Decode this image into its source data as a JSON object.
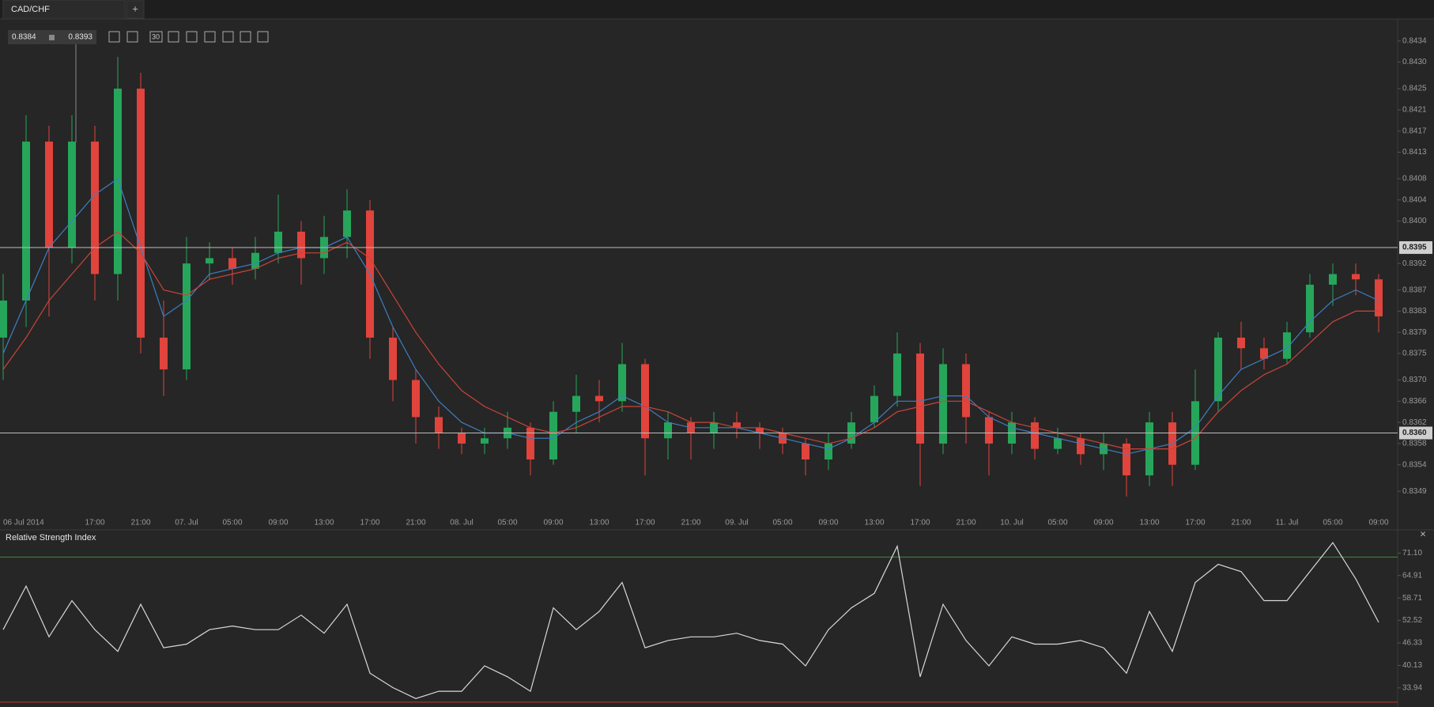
{
  "tab": {
    "title": "CAD/CHF",
    "add": "+"
  },
  "toolbar": {
    "bid": "0.8384",
    "ask": "0.8393",
    "period": "30"
  },
  "rsi_panel": {
    "close": "×"
  },
  "chart_data": [
    {
      "type": "candlestick",
      "categories": [
        "06 Jul 2014",
        null,
        null,
        null,
        "17:00",
        null,
        "21:00",
        null,
        "07. Jul",
        null,
        "05:00",
        null,
        "09:00",
        null,
        "13:00",
        null,
        "17:00",
        null,
        "21:00",
        null,
        "08. Jul",
        null,
        "05:00",
        null,
        "09:00",
        null,
        "13:00",
        null,
        "17:00",
        null,
        "21:00",
        null,
        "09. Jul",
        null,
        "05:00",
        null,
        "09:00",
        null,
        "13:00",
        null,
        "17:00",
        null,
        "21:00",
        null,
        "10. Jul",
        null,
        "05:00",
        null,
        "09:00",
        null,
        "13:00",
        null,
        "17:00",
        null,
        "21:00",
        null,
        "11. Jul",
        null,
        "05:00",
        null,
        "09:00"
      ],
      "open": [
        0.8378,
        0.8385,
        0.8415,
        0.8395,
        0.8415,
        0.839,
        0.8425,
        0.8378,
        0.8372,
        0.8392,
        0.8393,
        0.8391,
        0.8394,
        0.8398,
        0.8393,
        0.8397,
        0.8402,
        0.8378,
        0.837,
        0.8363,
        0.836,
        0.8358,
        0.8359,
        0.8361,
        0.8355,
        0.8364,
        0.8367,
        0.8366,
        0.8373,
        0.8359,
        0.8362,
        0.836,
        0.8362,
        0.8361,
        0.836,
        0.8358,
        0.8355,
        0.8358,
        0.8362,
        0.8367,
        0.8375,
        0.8358,
        0.8373,
        0.8363,
        0.8358,
        0.8362,
        0.8357,
        0.8359,
        0.8356,
        0.8358,
        0.8352,
        0.8362,
        0.8354,
        0.8366,
        0.8378,
        0.8376,
        0.8374,
        0.8379,
        0.8388,
        0.839,
        0.8389
      ],
      "high": [
        0.839,
        0.842,
        0.8418,
        0.842,
        0.8418,
        0.8431,
        0.8428,
        0.8385,
        0.8397,
        0.8396,
        0.8395,
        0.8397,
        0.8405,
        0.84,
        0.8401,
        0.8406,
        0.8404,
        0.838,
        0.8372,
        0.8365,
        0.8361,
        0.8361,
        0.8364,
        0.8362,
        0.8366,
        0.8371,
        0.837,
        0.8377,
        0.8374,
        0.8364,
        0.8363,
        0.8364,
        0.8364,
        0.8362,
        0.8361,
        0.8359,
        0.836,
        0.8364,
        0.8369,
        0.8379,
        0.8377,
        0.8376,
        0.8375,
        0.8364,
        0.8364,
        0.8363,
        0.8361,
        0.836,
        0.836,
        0.8359,
        0.8364,
        0.8364,
        0.8372,
        0.8379,
        0.8381,
        0.8378,
        0.8381,
        0.839,
        0.8392,
        0.8392,
        0.839
      ],
      "low": [
        0.837,
        0.838,
        0.8382,
        0.8392,
        0.8385,
        0.8385,
        0.8375,
        0.8367,
        0.837,
        0.8389,
        0.8388,
        0.8389,
        0.8392,
        0.8388,
        0.839,
        0.8393,
        0.8374,
        0.8366,
        0.8358,
        0.8357,
        0.8356,
        0.8356,
        0.8357,
        0.8352,
        0.8354,
        0.836,
        0.8362,
        0.8364,
        0.8352,
        0.8355,
        0.8355,
        0.8357,
        0.8359,
        0.8357,
        0.8356,
        0.8352,
        0.8353,
        0.8357,
        0.8361,
        0.8365,
        0.835,
        0.8356,
        0.8358,
        0.8352,
        0.8356,
        0.8355,
        0.8356,
        0.8354,
        0.8353,
        0.8348,
        0.835,
        0.835,
        0.8353,
        0.8364,
        0.8372,
        0.8372,
        0.8373,
        0.8378,
        0.8384,
        0.8386,
        0.8379
      ],
      "close": [
        0.8385,
        0.8415,
        0.8395,
        0.8415,
        0.839,
        0.8425,
        0.8378,
        0.8372,
        0.8392,
        0.8393,
        0.8391,
        0.8394,
        0.8398,
        0.8393,
        0.8397,
        0.8402,
        0.8378,
        0.837,
        0.8363,
        0.836,
        0.8358,
        0.8359,
        0.8361,
        0.8355,
        0.8364,
        0.8367,
        0.8366,
        0.8373,
        0.8359,
        0.8362,
        0.836,
        0.8362,
        0.8361,
        0.836,
        0.8358,
        0.8355,
        0.8358,
        0.8362,
        0.8367,
        0.8375,
        0.8358,
        0.8373,
        0.8363,
        0.8358,
        0.8362,
        0.8357,
        0.8359,
        0.8356,
        0.8358,
        0.8352,
        0.8362,
        0.8354,
        0.8366,
        0.8378,
        0.8376,
        0.8374,
        0.8379,
        0.8388,
        0.839,
        0.8389,
        0.8382
      ],
      "up_color": "#26a65b",
      "down_color": "#e0443c",
      "series": [
        {
          "color": "#3d7fc1",
          "values": [
            0.8375,
            0.8385,
            0.8395,
            0.84,
            0.8405,
            0.8408,
            0.8395,
            0.8382,
            0.8385,
            0.839,
            0.8391,
            0.8392,
            0.8394,
            0.8395,
            0.8395,
            0.8397,
            0.839,
            0.838,
            0.8372,
            0.8366,
            0.8362,
            0.836,
            0.836,
            0.8359,
            0.8359,
            0.8362,
            0.8364,
            0.8367,
            0.8365,
            0.8362,
            0.8361,
            0.8361,
            0.8361,
            0.836,
            0.8359,
            0.8358,
            0.8357,
            0.8359,
            0.8362,
            0.8366,
            0.8366,
            0.8367,
            0.8367,
            0.8363,
            0.8361,
            0.836,
            0.8359,
            0.8358,
            0.8357,
            0.8356,
            0.8357,
            0.8358,
            0.8361,
            0.8367,
            0.8372,
            0.8374,
            0.8376,
            0.8381,
            0.8385,
            0.8387,
            0.8385
          ]
        },
        {
          "color": "#c9443a",
          "values": [
            0.8372,
            0.8378,
            0.8385,
            0.839,
            0.8395,
            0.8398,
            0.8394,
            0.8387,
            0.8386,
            0.8389,
            0.839,
            0.8391,
            0.8393,
            0.8394,
            0.8394,
            0.8396,
            0.8393,
            0.8386,
            0.8379,
            0.8373,
            0.8368,
            0.8365,
            0.8363,
            0.8361,
            0.836,
            0.8361,
            0.8363,
            0.8365,
            0.8365,
            0.8364,
            0.8362,
            0.8362,
            0.8361,
            0.8361,
            0.836,
            0.8359,
            0.8358,
            0.8359,
            0.8361,
            0.8364,
            0.8365,
            0.8366,
            0.8366,
            0.8364,
            0.8362,
            0.8361,
            0.836,
            0.8359,
            0.8358,
            0.8357,
            0.8357,
            0.8357,
            0.8359,
            0.8364,
            0.8368,
            0.8371,
            0.8373,
            0.8377,
            0.8381,
            0.8383,
            0.8383
          ]
        }
      ],
      "ylim": [
        0.8345,
        0.8438
      ],
      "yticks": [
        0.8434,
        {
          "value": 0.843,
          "label": "0.8430"
        },
        0.8425,
        0.8421,
        0.8417,
        0.8413,
        0.8408,
        0.8404,
        {
          "value": 0.84,
          "label": "0.8400"
        },
        0.8392,
        0.8387,
        0.8383,
        0.8379,
        0.8375,
        {
          "value": 0.837,
          "label": "0.8370"
        },
        0.8366,
        0.8362,
        0.8358,
        0.8354,
        0.8349
      ],
      "hlines": [
        0.8395,
        {
          "value": 0.836,
          "label": "0.8360"
        }
      ],
      "hline_color": "#bdbdbd"
    },
    {
      "type": "line",
      "title": "Relative Strength Index",
      "color": "#d9d9d9",
      "values": [
        50,
        62,
        48,
        58,
        50,
        44,
        57,
        45,
        46,
        50,
        51,
        50,
        50,
        54,
        49,
        57,
        38,
        34,
        31,
        33,
        33,
        40,
        37,
        33,
        56,
        50,
        55,
        63,
        45,
        47,
        48,
        48,
        49,
        47,
        46,
        40,
        50,
        56,
        60,
        73,
        37,
        57,
        47,
        40,
        48,
        46,
        46,
        47,
        45,
        38,
        55,
        44,
        63,
        68,
        66,
        58,
        58,
        66,
        74,
        64,
        52
      ],
      "ylim": [
        29.1,
        76.2
      ],
      "yticks": [
        {
          "value": 71.1,
          "label": "71.10"
        },
        64.91,
        58.71,
        52.52,
        46.33,
        40.13,
        33.94
      ],
      "levels": [
        {
          "value": 70,
          "color": "#3f8f3f"
        },
        {
          "value": 30,
          "color": "#c0392b"
        }
      ]
    }
  ]
}
